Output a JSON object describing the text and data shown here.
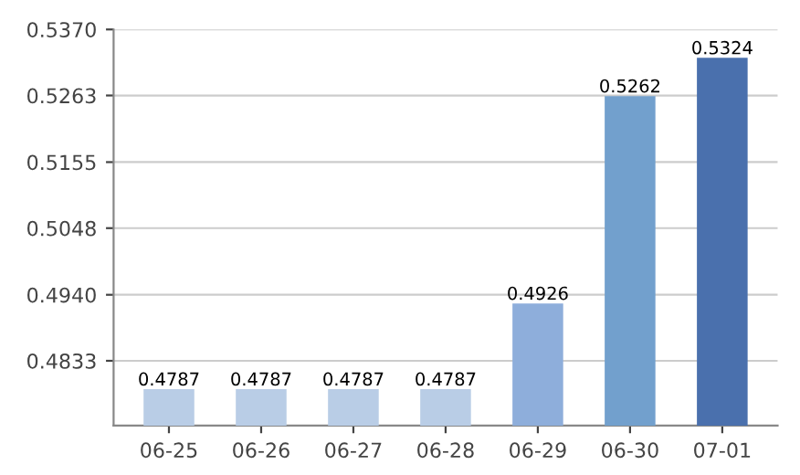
{
  "chart_data": {
    "type": "bar",
    "categories": [
      "06-25",
      "06-26",
      "06-27",
      "06-28",
      "06-29",
      "06-30",
      "07-01"
    ],
    "values": [
      0.4787,
      0.4787,
      0.4787,
      0.4787,
      0.4926,
      0.5262,
      0.5324
    ],
    "colors": [
      "#b9cde6",
      "#b9cde6",
      "#b9cde6",
      "#b9cde6",
      "#8eaedb",
      "#72a0cd",
      "#4a70ad"
    ],
    "ylim": [
      0.4728,
      0.537
    ],
    "yticks": [
      0.4833,
      {
        "value": 0.494,
        "label": "0.4940"
      },
      0.5048,
      0.5155,
      0.5263,
      {
        "value": 0.537,
        "label": "0.5370"
      }
    ],
    "grid": "y",
    "data_labels": true
  }
}
